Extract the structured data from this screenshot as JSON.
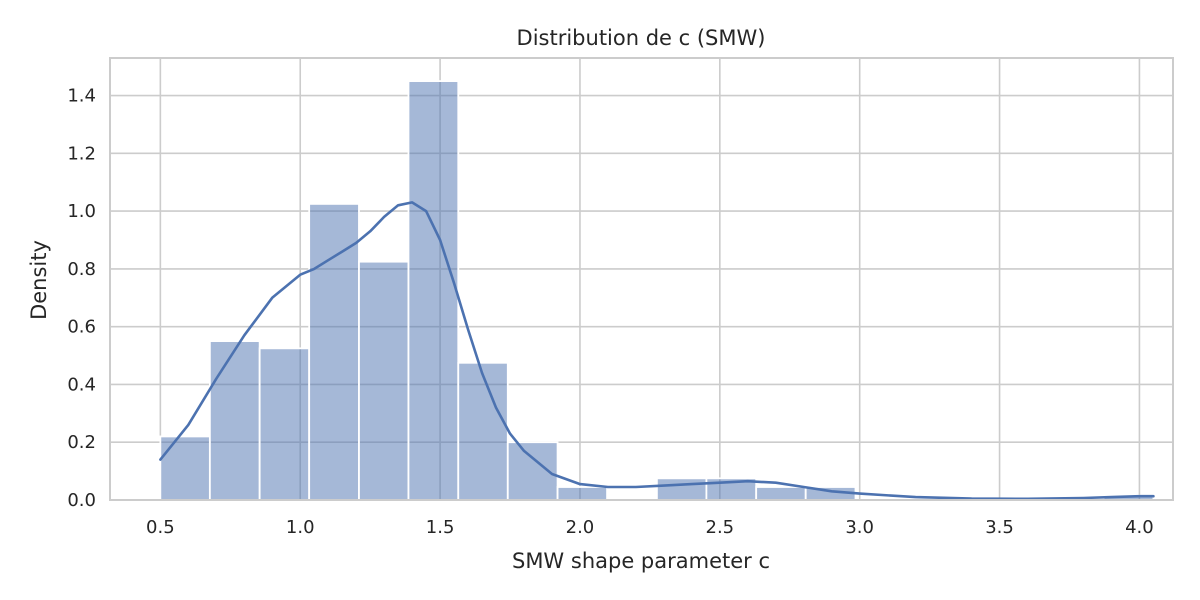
{
  "chart_data": {
    "type": "bar",
    "title": "Distribution de c (SMW)",
    "xlabel": "SMW shape parameter c",
    "ylabel": "Density",
    "xlim": [
      0.32,
      4.12
    ],
    "ylim": [
      0,
      1.53
    ],
    "grid": true,
    "x_ticks": [
      "0.5",
      "1.0",
      "1.5",
      "2.0",
      "2.5",
      "3.0",
      "3.5",
      "4.0"
    ],
    "y_ticks": [
      "0.0",
      "0.2",
      "0.4",
      "0.6",
      "0.8",
      "1.0",
      "1.2",
      "1.4"
    ],
    "bins": [
      {
        "x0": 0.5,
        "x1": 0.677,
        "value": 0.22
      },
      {
        "x0": 0.677,
        "x1": 0.855,
        "value": 0.55
      },
      {
        "x0": 0.855,
        "x1": 1.032,
        "value": 0.525
      },
      {
        "x0": 1.032,
        "x1": 1.21,
        "value": 1.025
      },
      {
        "x0": 1.21,
        "x1": 1.387,
        "value": 0.825
      },
      {
        "x0": 1.387,
        "x1": 1.565,
        "value": 1.45
      },
      {
        "x0": 1.565,
        "x1": 1.742,
        "value": 0.475
      },
      {
        "x0": 1.742,
        "x1": 1.92,
        "value": 0.2
      },
      {
        "x0": 1.92,
        "x1": 2.097,
        "value": 0.045
      },
      {
        "x0": 2.097,
        "x1": 2.275,
        "value": 0.0
      },
      {
        "x0": 2.275,
        "x1": 2.452,
        "value": 0.075
      },
      {
        "x0": 2.452,
        "x1": 2.63,
        "value": 0.075
      },
      {
        "x0": 2.63,
        "x1": 2.807,
        "value": 0.045
      },
      {
        "x0": 2.807,
        "x1": 2.985,
        "value": 0.045
      },
      {
        "x0": 2.985,
        "x1": 3.162,
        "value": 0.0
      },
      {
        "x0": 3.162,
        "x1": 3.34,
        "value": 0.0
      },
      {
        "x0": 3.34,
        "x1": 3.517,
        "value": 0.0
      },
      {
        "x0": 3.517,
        "x1": 3.695,
        "value": 0.0
      },
      {
        "x0": 3.695,
        "x1": 3.872,
        "value": 0.0
      },
      {
        "x0": 3.872,
        "x1": 4.05,
        "value": 0.015
      }
    ],
    "kde": {
      "x": [
        0.5,
        0.6,
        0.7,
        0.8,
        0.9,
        1.0,
        1.05,
        1.1,
        1.15,
        1.2,
        1.25,
        1.3,
        1.35,
        1.4,
        1.45,
        1.5,
        1.55,
        1.6,
        1.65,
        1.7,
        1.75,
        1.8,
        1.9,
        2.0,
        2.1,
        2.2,
        2.3,
        2.4,
        2.5,
        2.6,
        2.7,
        2.8,
        2.9,
        3.0,
        3.2,
        3.4,
        3.6,
        3.8,
        3.9,
        4.0,
        4.05
      ],
      "y": [
        0.14,
        0.26,
        0.42,
        0.57,
        0.7,
        0.78,
        0.8,
        0.83,
        0.86,
        0.89,
        0.93,
        0.98,
        1.02,
        1.03,
        1.0,
        0.9,
        0.75,
        0.59,
        0.44,
        0.32,
        0.23,
        0.17,
        0.09,
        0.055,
        0.045,
        0.045,
        0.05,
        0.055,
        0.06,
        0.065,
        0.06,
        0.045,
        0.03,
        0.022,
        0.01,
        0.005,
        0.004,
        0.007,
        0.01,
        0.013,
        0.013
      ]
    },
    "colors": {
      "bar": "#4c72b0",
      "line": "#4c72b0",
      "grid": "#cccccc"
    }
  }
}
